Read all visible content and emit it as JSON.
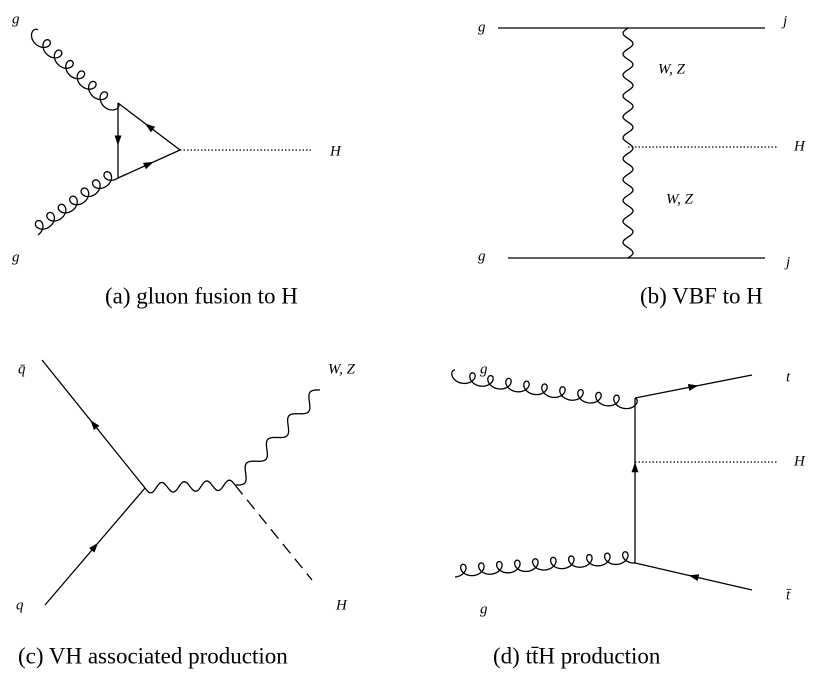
{
  "diagrams": [
    {
      "caption": "(a) gluon fusion to H",
      "labels": [
        "g",
        "g",
        "H"
      ]
    },
    {
      "caption": "(b) VBF to H",
      "labels": [
        "g",
        "j",
        "W, Z",
        "H",
        "W, Z",
        "g",
        "j"
      ]
    },
    {
      "caption": "(c) VH associated production",
      "labels": [
        "q̄",
        "W, Z",
        "q",
        "H"
      ]
    },
    {
      "caption": "(d) tt̄H production",
      "labels": [
        "g",
        "t",
        "H",
        "g",
        "t̄"
      ]
    }
  ]
}
